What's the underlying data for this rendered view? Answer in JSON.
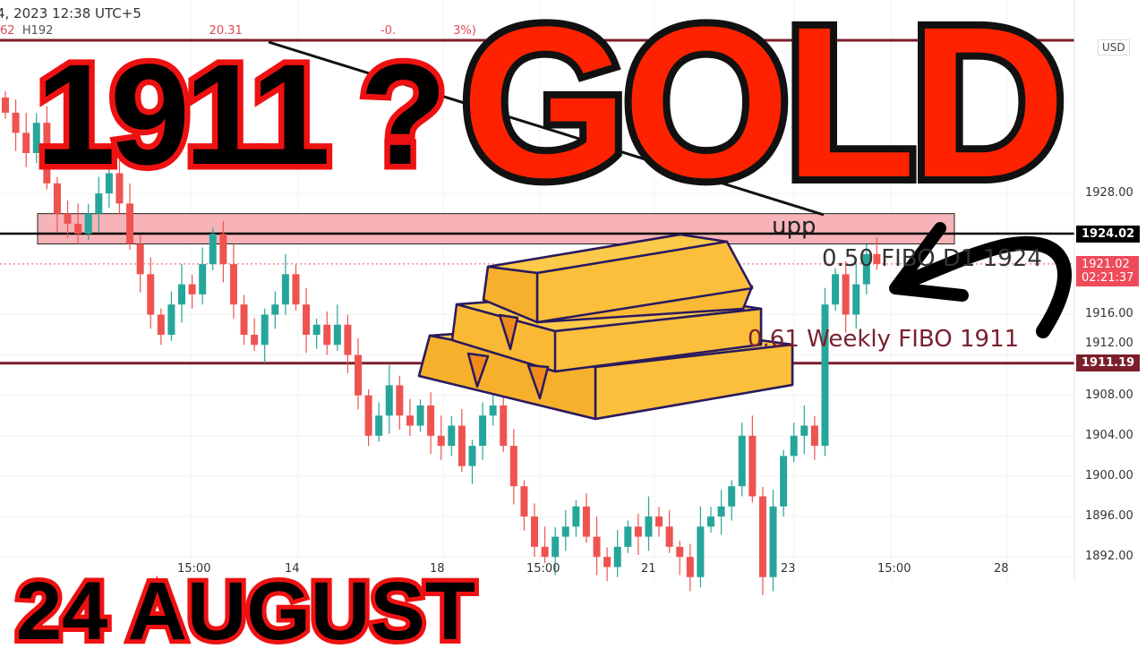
{
  "header": {
    "datetime": "4, 2023 12:38 UTC+5",
    "ohlc_fragments": [
      "62",
      "H192",
      "20.31",
      "-0.",
      "3%)"
    ],
    "currency": "USD"
  },
  "overlay": {
    "headline_number": "1911 ?",
    "headline_word": "GOLD",
    "date_caption": "24 AUGUST"
  },
  "annotations": {
    "fibo_daily": "0.50 FIBO D1 1924",
    "fibo_weekly": "0.61 Weekly FIBO 1911",
    "supply_label": "upp"
  },
  "colors": {
    "up": "#26a69a",
    "down": "#ef5350",
    "zone": "#f7b3b8",
    "weekly_line": "#7a1f2b",
    "headline_red": "#ff2200",
    "gold": "#fbbf3c"
  },
  "chart_data": {
    "type": "candlestick",
    "title": "",
    "y_ticks": [
      "1928.00",
      "1916.00",
      "1912.00",
      "1908.00",
      "1904.00",
      "1900.00",
      "1896.00",
      "1892.00"
    ],
    "x_ticks": [
      "15:00",
      "14",
      "18",
      "15:00",
      "21",
      "23",
      "15:00",
      "28"
    ],
    "ylim": [
      1889,
      1937
    ],
    "closes": [
      1936,
      1934,
      1932,
      1935,
      1929,
      1926,
      1925,
      1924,
      1926,
      1928,
      1930,
      1927,
      1923,
      1920,
      1916,
      1914,
      1917,
      1919,
      1918,
      1921,
      1924,
      1921,
      1917,
      1914,
      1913,
      1916,
      1917,
      1920,
      1917,
      1914,
      1915,
      1913,
      1915,
      1912,
      1908,
      1904,
      1906,
      1909,
      1906,
      1905,
      1907,
      1904,
      1903,
      1905,
      1901,
      1903,
      1906,
      1907,
      1903,
      1899,
      1896,
      1893,
      1892,
      1894,
      1895,
      1897,
      1894,
      1892,
      1891,
      1893,
      1895,
      1894,
      1896,
      1895,
      1893,
      1892,
      1890,
      1895,
      1896,
      1897,
      1899,
      1904,
      1898,
      1890,
      1897,
      1902,
      1904,
      1905,
      1903,
      1917,
      1920,
      1916,
      1919,
      1922,
      1921.02
    ],
    "levels": {
      "resistance": 1924.02,
      "current_price": 1921.02,
      "countdown": "02:21:37",
      "weekly_fibo": 1911.19
    },
    "supply_zone": [
      1923,
      1926
    ]
  }
}
